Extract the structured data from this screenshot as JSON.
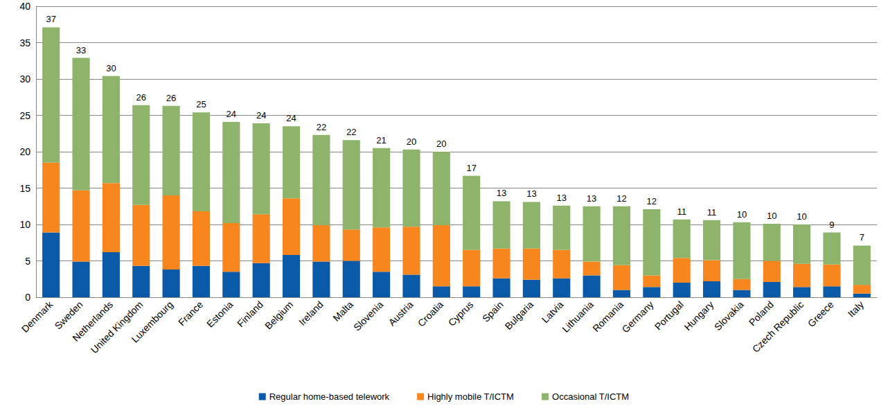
{
  "chart_data": {
    "type": "bar",
    "stacked": true,
    "grid": true,
    "legend": "bottom",
    "categories": [
      "Denmark",
      "Sweden",
      "Netherlands",
      "United Kingdom",
      "Luxembourg",
      "France",
      "Estonia",
      "Finland",
      "Belgium",
      "Ireland",
      "Malta",
      "Slovenia",
      "Austria",
      "Croatia",
      "Cyprus",
      "Spain",
      "Bulgaria",
      "Latvia",
      "Lithuania",
      "Romania",
      "Germany",
      "Portugal",
      "Hungary",
      "Slovakia",
      "Poland",
      "Czech Republic",
      "Greece",
      "Italy"
    ],
    "series": [
      {
        "name": "Regular home-based telework",
        "color": "#0b5aa8",
        "values": [
          8.9,
          4.9,
          6.2,
          4.3,
          3.8,
          4.3,
          3.5,
          4.7,
          5.8,
          4.9,
          5.0,
          3.5,
          3.1,
          1.5,
          1.5,
          2.6,
          2.4,
          2.6,
          3.0,
          1.0,
          1.4,
          2.0,
          2.2,
          1.0,
          2.1,
          1.4,
          1.5,
          0.5
        ]
      },
      {
        "name": "Highly mobile T/ICTM",
        "color": "#f7861f",
        "values": [
          9.6,
          9.8,
          9.5,
          8.4,
          10.2,
          7.5,
          6.7,
          6.7,
          7.8,
          5.0,
          4.3,
          6.1,
          6.6,
          8.4,
          5.0,
          4.1,
          4.3,
          3.9,
          1.9,
          3.4,
          1.6,
          3.4,
          2.9,
          1.5,
          2.9,
          3.2,
          3.0,
          1.2
        ]
      },
      {
        "name": "Occasional T/ICTM",
        "color": "#8db46a",
        "values": [
          18.6,
          18.2,
          14.7,
          13.7,
          12.3,
          13.6,
          13.9,
          12.5,
          9.9,
          12.4,
          12.3,
          10.9,
          10.6,
          10.1,
          10.2,
          6.5,
          6.4,
          6.1,
          7.6,
          8.1,
          9.1,
          5.3,
          5.5,
          7.8,
          5.1,
          5.4,
          4.4,
          5.4
        ]
      }
    ],
    "totals": [
      37,
      33,
      30,
      26,
      26,
      25,
      24,
      24,
      24,
      22,
      22,
      21,
      20,
      20,
      17,
      13,
      13,
      13,
      13,
      12,
      12,
      11,
      11,
      10,
      10,
      10,
      9,
      7
    ],
    "ylim": [
      0,
      40
    ],
    "yticks": [
      0,
      5,
      10,
      15,
      20,
      25,
      30,
      35,
      40
    ]
  }
}
